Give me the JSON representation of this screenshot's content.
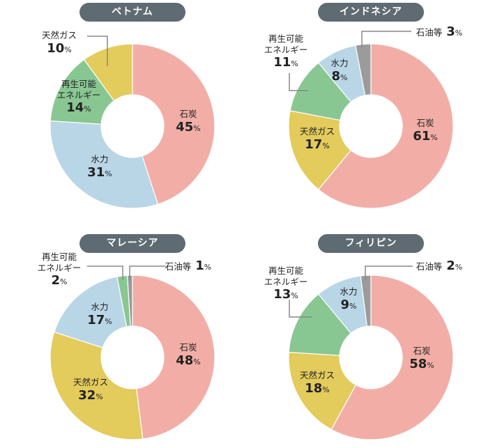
{
  "colors": {
    "石炭": "#f2aea6",
    "水力": "#b9d6e6",
    "再生可能エネルギー": "#89c792",
    "天然ガス": "#e3cb5c",
    "石油等": "#9b9b9b",
    "title_bg": "#5f6b73"
  },
  "chart_data": [
    {
      "type": "pie",
      "donut": true,
      "title": "ベトナム",
      "unit": "%",
      "slices": [
        {
          "label": "石炭",
          "value": 45
        },
        {
          "label": "水力",
          "value": 31
        },
        {
          "label": "再生可能エネルギー",
          "value": 14
        },
        {
          "label": "天然ガス",
          "value": 10
        }
      ]
    },
    {
      "type": "pie",
      "donut": true,
      "title": "インドネシア",
      "unit": "%",
      "slices": [
        {
          "label": "石炭",
          "value": 61
        },
        {
          "label": "天然ガス",
          "value": 17
        },
        {
          "label": "再生可能エネルギー",
          "value": 11
        },
        {
          "label": "水力",
          "value": 8
        },
        {
          "label": "石油等",
          "value": 3
        }
      ]
    },
    {
      "type": "pie",
      "donut": true,
      "title": "マレーシア",
      "unit": "%",
      "slices": [
        {
          "label": "石炭",
          "value": 48
        },
        {
          "label": "天然ガス",
          "value": 32
        },
        {
          "label": "水力",
          "value": 17
        },
        {
          "label": "再生可能エネルギー",
          "value": 2
        },
        {
          "label": "石油等",
          "value": 1
        }
      ]
    },
    {
      "type": "pie",
      "donut": true,
      "title": "フィリピン",
      "unit": "%",
      "slices": [
        {
          "label": "石炭",
          "value": 58
        },
        {
          "label": "天然ガス",
          "value": 18
        },
        {
          "label": "再生可能エネルギー",
          "value": 13
        },
        {
          "label": "水力",
          "value": 9
        },
        {
          "label": "石油等",
          "value": 2
        }
      ]
    }
  ]
}
